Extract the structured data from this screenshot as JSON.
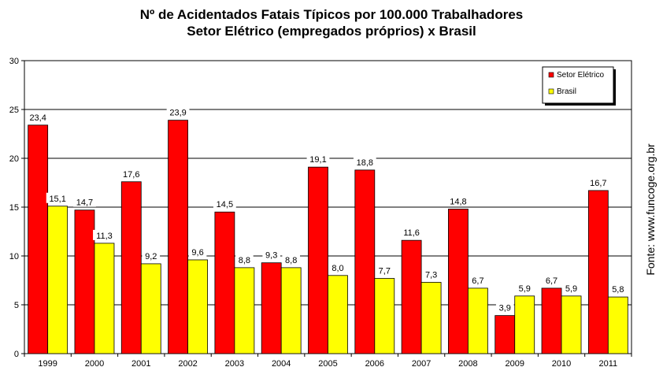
{
  "title": "Nº de Acidentados Fatais Típicos por 100.000 Trabalhadores",
  "subtitle": "Setor Elétrico (empregados próprios) x Brasil",
  "source": "Fonte: www.funcoge.org.br",
  "chart_data": {
    "type": "bar",
    "categories": [
      "1999",
      "2000",
      "2001",
      "2002",
      "2003",
      "2004",
      "2005",
      "2006",
      "2007",
      "2008",
      "2009",
      "2010",
      "2011"
    ],
    "series": [
      {
        "name": "Setor Elétrico",
        "color": "#ff0000",
        "values": [
          23.4,
          14.7,
          17.6,
          23.9,
          14.5,
          9.3,
          19.1,
          18.8,
          11.6,
          14.8,
          3.9,
          6.7,
          16.7
        ],
        "labels": [
          "23,4",
          "14,7",
          "17,6",
          "23,9",
          "14,5",
          "9,3",
          "19,1",
          "18,8",
          "11,6",
          "14,8",
          "3,9",
          "6,7",
          "16,7"
        ]
      },
      {
        "name": "Brasil",
        "color": "#ffff00",
        "values": [
          15.1,
          11.3,
          9.2,
          9.6,
          8.8,
          8.8,
          8.0,
          7.7,
          7.3,
          6.7,
          5.9,
          5.9,
          5.8
        ],
        "labels": [
          "15,1",
          "11,3",
          "9,2",
          "9,6",
          "8,8",
          "8,8",
          "8,0",
          "7,7",
          "7,3",
          "6,7",
          "5,9",
          "5,9",
          "5,8"
        ]
      }
    ],
    "yticks": [
      "0",
      "5",
      "10",
      "15",
      "20",
      "25",
      "30"
    ],
    "ylim": [
      0,
      30
    ],
    "grid": true,
    "legend": "top-right"
  }
}
